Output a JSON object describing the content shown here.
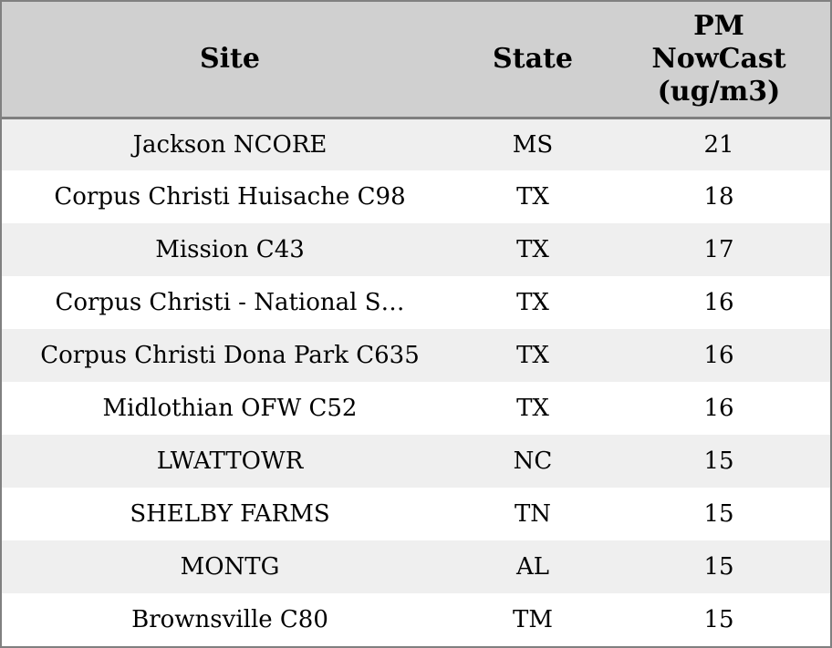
{
  "chart_data": {
    "type": "table",
    "title": "",
    "columns": [
      {
        "id": "site",
        "label": "Site"
      },
      {
        "id": "state",
        "label": "State"
      },
      {
        "id": "pm_nowcast",
        "label": "PM\nNowCast\n(ug/m3)"
      }
    ],
    "rows": [
      {
        "site": "Jackson NCORE",
        "state": "MS",
        "pm_nowcast": "21"
      },
      {
        "site": "Corpus Christi Huisache C98",
        "state": "TX",
        "pm_nowcast": "18"
      },
      {
        "site": "Mission C43",
        "state": "TX",
        "pm_nowcast": "17"
      },
      {
        "site": "Corpus Christi - National S…",
        "state": "TX",
        "pm_nowcast": "16"
      },
      {
        "site": "Corpus Christi Dona Park C635",
        "state": "TX",
        "pm_nowcast": "16"
      },
      {
        "site": "Midlothian OFW C52",
        "state": "TX",
        "pm_nowcast": "16"
      },
      {
        "site": "LWATTOWR",
        "state": "NC",
        "pm_nowcast": "15"
      },
      {
        "site": "SHELBY FARMS",
        "state": "TN",
        "pm_nowcast": "15"
      },
      {
        "site": "MONTG",
        "state": "AL",
        "pm_nowcast": "15"
      },
      {
        "site": "Brownsville C80",
        "state": "TM",
        "pm_nowcast": "15"
      }
    ]
  },
  "colors": {
    "header_bg": "#d0d0d0",
    "header_divider": "#7f7f7f",
    "row_stripe_bg": "#efefef",
    "row_bg": "#ffffff",
    "outer_border": "#808080",
    "text": "#000000"
  }
}
